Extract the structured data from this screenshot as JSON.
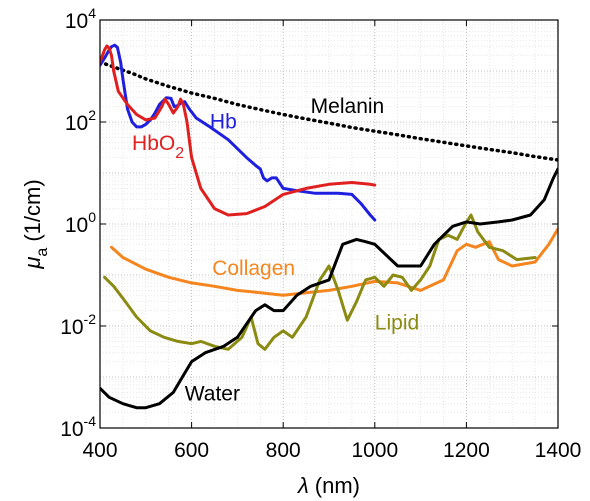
{
  "chart_data": {
    "type": "line",
    "xlabel": "λ (nm)",
    "ylabel": "μa (1/cm)",
    "ylabel_parts": {
      "symbol": "μ",
      "subscript": "a",
      "unit": "(1/cm)"
    },
    "xlabel_parts": {
      "symbol": "λ",
      "unit": "(nm)"
    },
    "xlim": [
      400,
      1400
    ],
    "ylim": [
      0.0001,
      10000
    ],
    "yscale": "log",
    "grid": "major and minor, dotted",
    "x_ticks": [
      "400",
      "600",
      "800",
      "1000",
      "1200",
      "1400"
    ],
    "y_ticks": [
      {
        "base": "10",
        "exp": "4"
      },
      {
        "base": "10",
        "exp": "2"
      },
      {
        "base": "10",
        "exp": "0"
      },
      {
        "base": "10",
        "exp": "-2"
      },
      {
        "base": "10",
        "exp": "-4"
      }
    ],
    "series": [
      {
        "name": "Melanin",
        "color": "#000000",
        "style": "dotted",
        "points": [
          [
            400,
            1500
          ],
          [
            430,
            1200
          ],
          [
            470,
            900
          ],
          [
            500,
            700
          ],
          [
            550,
            500
          ],
          [
            600,
            370
          ],
          [
            650,
            290
          ],
          [
            700,
            220
          ],
          [
            750,
            175
          ],
          [
            800,
            140
          ],
          [
            850,
            115
          ],
          [
            900,
            95
          ],
          [
            950,
            78
          ],
          [
            1000,
            66
          ],
          [
            1050,
            56
          ],
          [
            1100,
            47
          ],
          [
            1150,
            40
          ],
          [
            1200,
            34
          ],
          [
            1250,
            29
          ],
          [
            1300,
            25
          ],
          [
            1350,
            21
          ],
          [
            1400,
            18
          ]
        ]
      },
      {
        "name": "Hb",
        "color": "#1f1fe0",
        "style": "solid",
        "points": [
          [
            400,
            1300
          ],
          [
            410,
            1800
          ],
          [
            420,
            2600
          ],
          [
            425,
            3000
          ],
          [
            432,
            3200
          ],
          [
            438,
            2900
          ],
          [
            445,
            1500
          ],
          [
            450,
            700
          ],
          [
            460,
            180
          ],
          [
            470,
            100
          ],
          [
            480,
            80
          ],
          [
            490,
            80
          ],
          [
            500,
            90
          ],
          [
            510,
            110
          ],
          [
            520,
            150
          ],
          [
            530,
            220
          ],
          [
            545,
            300
          ],
          [
            555,
            290
          ],
          [
            562,
            200
          ],
          [
            570,
            210
          ],
          [
            578,
            240
          ],
          [
            585,
            250
          ],
          [
            595,
            180
          ],
          [
            610,
            120
          ],
          [
            640,
            80
          ],
          [
            680,
            45
          ],
          [
            720,
            20
          ],
          [
            740,
            14
          ],
          [
            750,
            12
          ],
          [
            757,
            8
          ],
          [
            765,
            7
          ],
          [
            775,
            8
          ],
          [
            785,
            8
          ],
          [
            800,
            5
          ],
          [
            830,
            4.5
          ],
          [
            870,
            4
          ],
          [
            920,
            4
          ],
          [
            950,
            3.8
          ],
          [
            970,
            2.5
          ],
          [
            990,
            1.5
          ],
          [
            1000,
            1.2
          ]
        ]
      },
      {
        "name": "HbO2",
        "color": "#e01f1f",
        "style": "solid",
        "points": [
          [
            400,
            1500
          ],
          [
            410,
            2600
          ],
          [
            415,
            3100
          ],
          [
            420,
            2800
          ],
          [
            425,
            2000
          ],
          [
            430,
            1000
          ],
          [
            440,
            400
          ],
          [
            460,
            220
          ],
          [
            480,
            140
          ],
          [
            500,
            110
          ],
          [
            520,
            120
          ],
          [
            535,
            200
          ],
          [
            542,
            280
          ],
          [
            550,
            220
          ],
          [
            560,
            150
          ],
          [
            570,
            200
          ],
          [
            576,
            280
          ],
          [
            582,
            220
          ],
          [
            590,
            100
          ],
          [
            600,
            20
          ],
          [
            620,
            5
          ],
          [
            650,
            2
          ],
          [
            680,
            1.5
          ],
          [
            720,
            1.6
          ],
          [
            760,
            2.2
          ],
          [
            800,
            3.8
          ],
          [
            850,
            5
          ],
          [
            900,
            6
          ],
          [
            950,
            6.5
          ],
          [
            990,
            6
          ],
          [
            1000,
            5.8
          ]
        ]
      },
      {
        "name": "Collagen",
        "color": "#f5861f",
        "style": "solid",
        "points": [
          [
            425,
            0.35
          ],
          [
            450,
            0.22
          ],
          [
            500,
            0.13
          ],
          [
            550,
            0.09
          ],
          [
            600,
            0.07
          ],
          [
            650,
            0.06
          ],
          [
            700,
            0.05
          ],
          [
            750,
            0.045
          ],
          [
            800,
            0.04
          ],
          [
            850,
            0.045
          ],
          [
            900,
            0.05
          ],
          [
            950,
            0.06
          ],
          [
            1000,
            0.075
          ],
          [
            1050,
            0.07
          ],
          [
            1100,
            0.05
          ],
          [
            1150,
            0.08
          ],
          [
            1180,
            0.3
          ],
          [
            1200,
            0.4
          ],
          [
            1220,
            0.35
          ],
          [
            1250,
            0.45
          ],
          [
            1270,
            0.2
          ],
          [
            1300,
            0.15
          ],
          [
            1350,
            0.18
          ],
          [
            1380,
            0.4
          ],
          [
            1400,
            0.8
          ]
        ]
      },
      {
        "name": "Lipid",
        "color": "#8b8b14",
        "style": "solid",
        "points": [
          [
            410,
            0.09
          ],
          [
            430,
            0.06
          ],
          [
            450,
            0.035
          ],
          [
            480,
            0.015
          ],
          [
            510,
            0.008
          ],
          [
            540,
            0.006
          ],
          [
            570,
            0.005
          ],
          [
            600,
            0.0045
          ],
          [
            620,
            0.005
          ],
          [
            650,
            0.004
          ],
          [
            680,
            0.0035
          ],
          [
            710,
            0.006
          ],
          [
            730,
            0.015
          ],
          [
            745,
            0.0045
          ],
          [
            760,
            0.0035
          ],
          [
            780,
            0.006
          ],
          [
            800,
            0.008
          ],
          [
            820,
            0.006
          ],
          [
            850,
            0.015
          ],
          [
            880,
            0.08
          ],
          [
            900,
            0.15
          ],
          [
            920,
            0.05
          ],
          [
            940,
            0.013
          ],
          [
            960,
            0.03
          ],
          [
            980,
            0.08
          ],
          [
            1000,
            0.09
          ],
          [
            1020,
            0.06
          ],
          [
            1040,
            0.1
          ],
          [
            1060,
            0.09
          ],
          [
            1080,
            0.05
          ],
          [
            1100,
            0.08
          ],
          [
            1120,
            0.15
          ],
          [
            1140,
            0.5
          ],
          [
            1160,
            0.6
          ],
          [
            1180,
            0.5
          ],
          [
            1195,
            0.9
          ],
          [
            1210,
            1.5
          ],
          [
            1225,
            0.7
          ],
          [
            1250,
            0.35
          ],
          [
            1280,
            0.3
          ],
          [
            1310,
            0.2
          ],
          [
            1350,
            0.22
          ]
        ]
      },
      {
        "name": "Water",
        "color": "#000000",
        "style": "solid",
        "points": [
          [
            400,
            0.0006
          ],
          [
            420,
            0.0004
          ],
          [
            450,
            0.0003
          ],
          [
            480,
            0.00025
          ],
          [
            500,
            0.00025
          ],
          [
            530,
            0.0003
          ],
          [
            560,
            0.0005
          ],
          [
            580,
            0.001
          ],
          [
            600,
            0.002
          ],
          [
            630,
            0.003
          ],
          [
            670,
            0.004
          ],
          [
            700,
            0.006
          ],
          [
            740,
            0.02
          ],
          [
            760,
            0.026
          ],
          [
            780,
            0.02
          ],
          [
            800,
            0.02
          ],
          [
            830,
            0.04
          ],
          [
            860,
            0.06
          ],
          [
            900,
            0.08
          ],
          [
            930,
            0.4
          ],
          [
            960,
            0.5
          ],
          [
            980,
            0.45
          ],
          [
            1000,
            0.4
          ],
          [
            1050,
            0.15
          ],
          [
            1100,
            0.15
          ],
          [
            1130,
            0.4
          ],
          [
            1170,
            0.9
          ],
          [
            1200,
            1.1
          ],
          [
            1230,
            1.0
          ],
          [
            1270,
            1.1
          ],
          [
            1300,
            1.2
          ],
          [
            1340,
            1.5
          ],
          [
            1370,
            3
          ],
          [
            1390,
            8
          ],
          [
            1400,
            12
          ]
        ]
      }
    ],
    "labels": [
      {
        "text": "Melanin",
        "color": "#000000",
        "at": [
          860,
          150
        ]
      },
      {
        "text": "Hb",
        "color": "#1f1fe0",
        "at": [
          640,
          75
        ]
      },
      {
        "text": "HbO",
        "sub": "2",
        "color": "#e01f1f",
        "at": [
          470,
          28
        ]
      },
      {
        "text": "Collagen",
        "color": "#f5861f",
        "at": [
          645,
          0.1
        ]
      },
      {
        "text": "Lipid",
        "color": "#8b8b14",
        "at": [
          1000,
          0.0085
        ]
      },
      {
        "text": "Water",
        "color": "#000000",
        "at": [
          585,
          0.00035
        ]
      }
    ]
  }
}
